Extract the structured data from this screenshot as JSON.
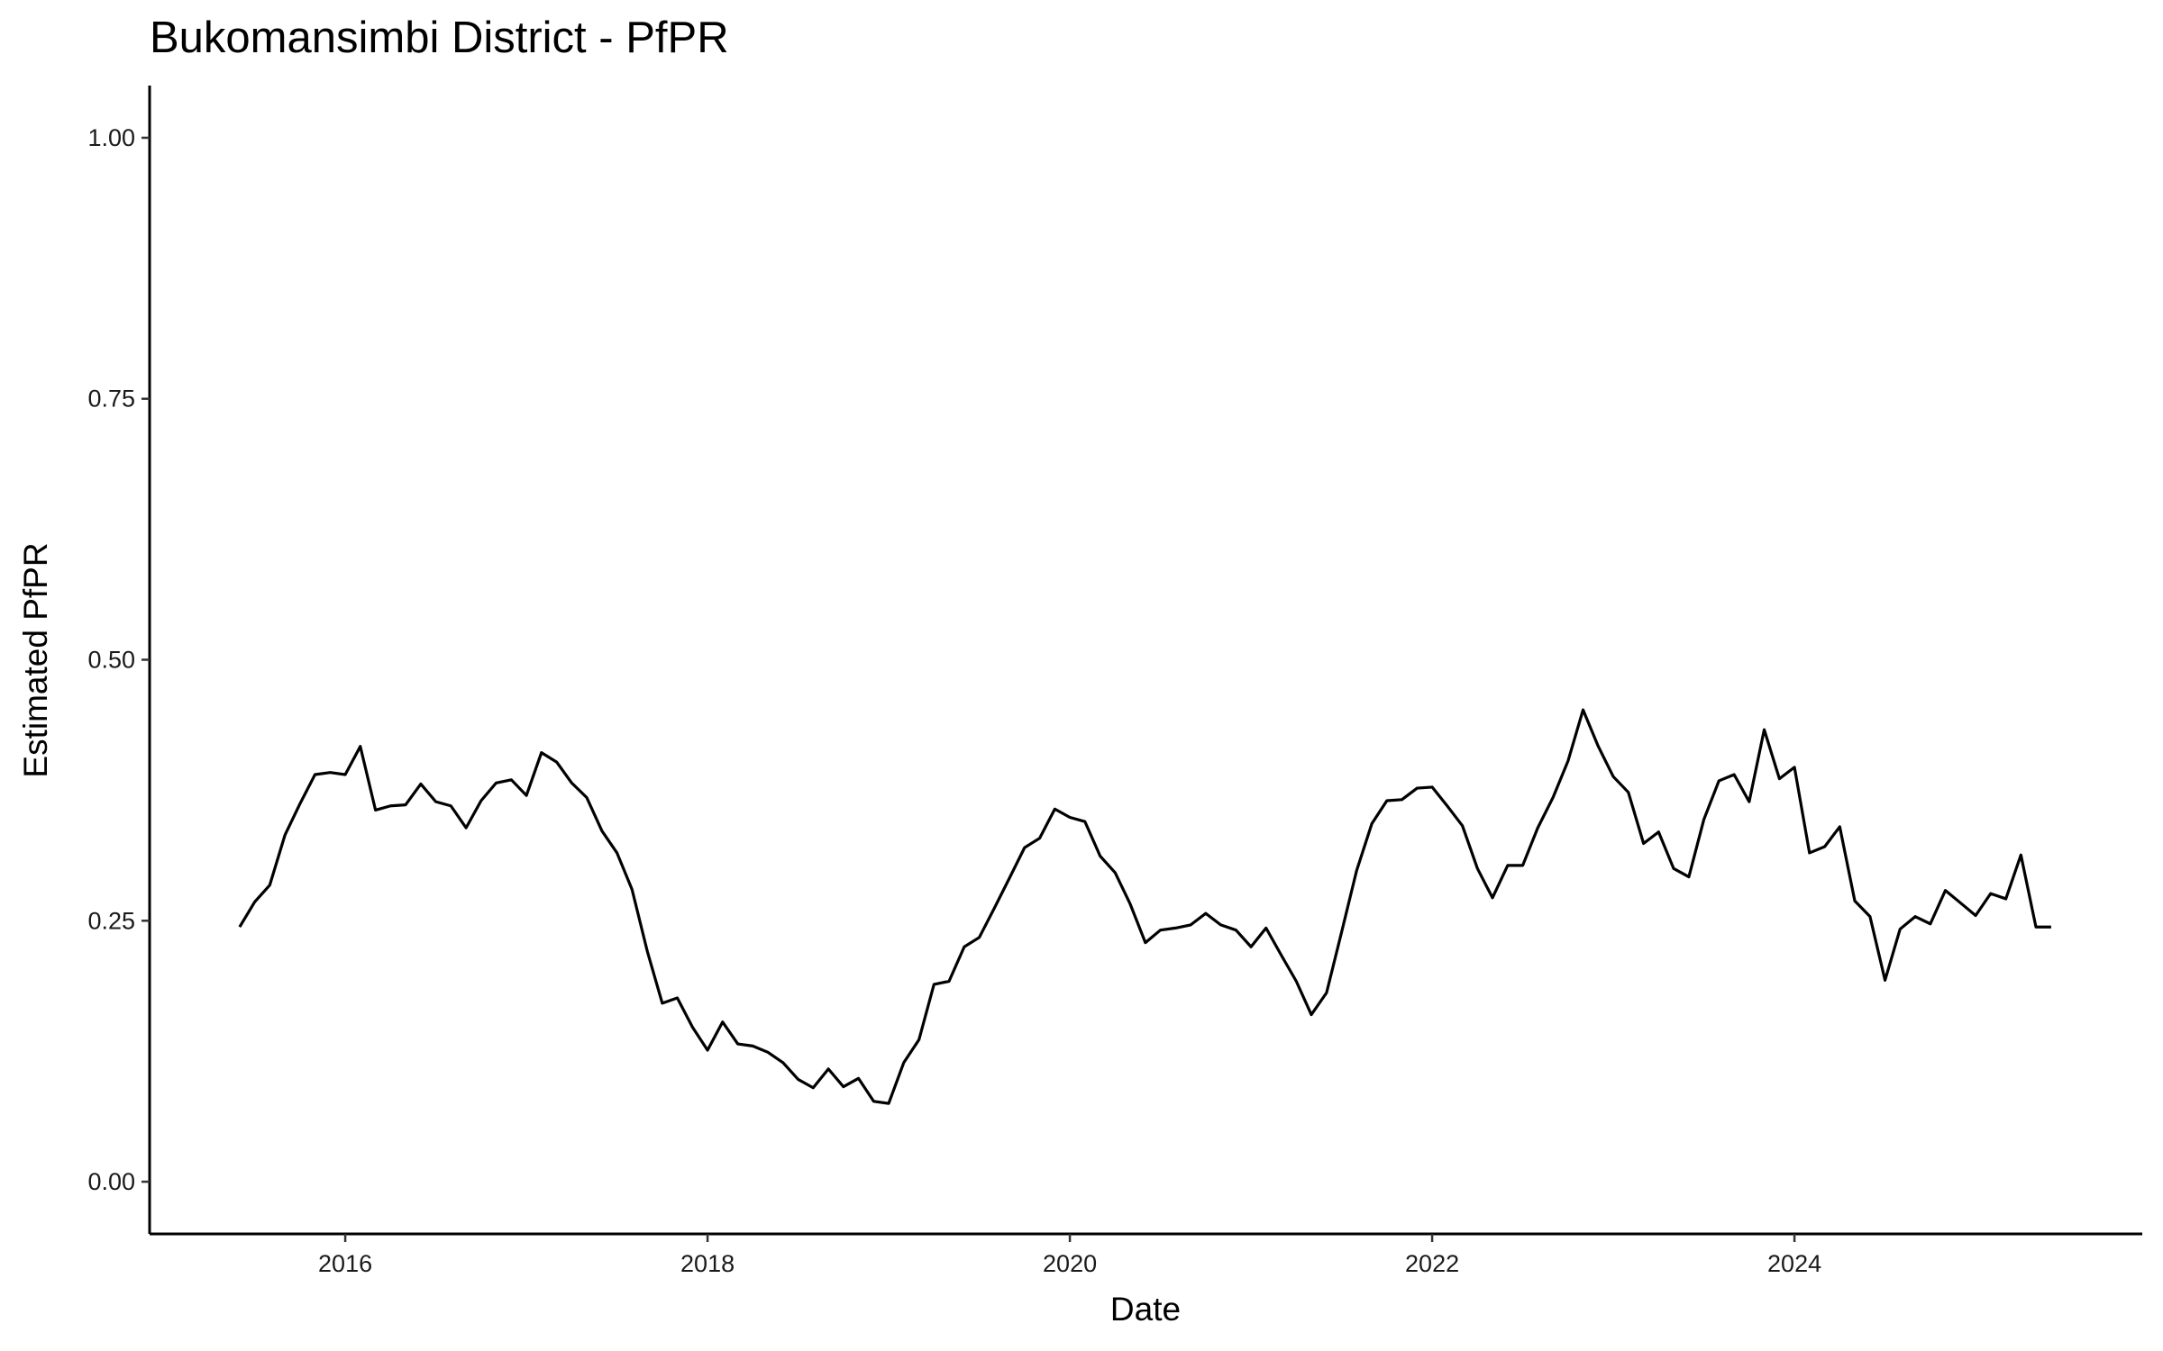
{
  "chart_data": {
    "type": "line",
    "title": "Bukomansimbi District - PfPR",
    "xlabel": "Date",
    "ylabel": "Estimated PfPR",
    "color": "#000000",
    "grid": false,
    "xlim": [
      2014.92,
      2025.92
    ],
    "xticks": [
      2016,
      2018,
      2020,
      2022,
      2024
    ],
    "ylim": [
      -0.05,
      1.05
    ],
    "yticks": [
      {
        "value": 0,
        "label": "0.00"
      },
      {
        "value": 0.25,
        "label": "0.25"
      },
      {
        "value": 0.5,
        "label": "0.50"
      },
      {
        "value": 0.75,
        "label": "0.75"
      },
      {
        "value": 1,
        "label": "1.00"
      }
    ],
    "x": [
      2015.417,
      2015.5,
      2015.583,
      2015.667,
      2015.75,
      2015.833,
      2015.917,
      2016.0,
      2016.083,
      2016.167,
      2016.25,
      2016.333,
      2016.417,
      2016.5,
      2016.583,
      2016.667,
      2016.75,
      2016.833,
      2016.917,
      2017.0,
      2017.083,
      2017.167,
      2017.25,
      2017.333,
      2017.417,
      2017.5,
      2017.583,
      2017.667,
      2017.75,
      2017.833,
      2017.917,
      2018.0,
      2018.083,
      2018.167,
      2018.25,
      2018.333,
      2018.417,
      2018.5,
      2018.583,
      2018.667,
      2018.75,
      2018.833,
      2018.917,
      2019.0,
      2019.083,
      2019.167,
      2019.25,
      2019.333,
      2019.417,
      2019.5,
      2019.583,
      2019.667,
      2019.75,
      2019.833,
      2019.917,
      2020.0,
      2020.083,
      2020.167,
      2020.25,
      2020.333,
      2020.417,
      2020.5,
      2020.583,
      2020.667,
      2020.75,
      2020.833,
      2020.917,
      2021.0,
      2021.083,
      2021.167,
      2021.25,
      2021.333,
      2021.417,
      2021.5,
      2021.583,
      2021.667,
      2021.75,
      2021.833,
      2021.917,
      2022.0,
      2022.083,
      2022.167,
      2022.25,
      2022.333,
      2022.417,
      2022.5,
      2022.583,
      2022.667,
      2022.75,
      2022.833,
      2022.917,
      2023.0,
      2023.083,
      2023.167,
      2023.25,
      2023.333,
      2023.417,
      2023.5,
      2023.583,
      2023.667,
      2023.75,
      2023.833,
      2023.917,
      2024.0,
      2024.083,
      2024.167,
      2024.25,
      2024.333,
      2024.417,
      2024.5,
      2024.583,
      2024.667,
      2024.75,
      2024.833,
      2024.917,
      2025.0,
      2025.083,
      2025.167,
      2025.25,
      2025.333,
      2025.417
    ],
    "values": [
      0.244,
      0.268,
      0.284,
      0.332,
      0.362,
      0.39,
      0.392,
      0.39,
      0.417,
      0.356,
      0.36,
      0.361,
      0.381,
      0.364,
      0.36,
      0.339,
      0.365,
      0.382,
      0.385,
      0.37,
      0.411,
      0.402,
      0.382,
      0.368,
      0.336,
      0.315,
      0.28,
      0.221,
      0.171,
      0.176,
      0.148,
      0.126,
      0.153,
      0.132,
      0.13,
      0.124,
      0.114,
      0.098,
      0.09,
      0.108,
      0.091,
      0.099,
      0.077,
      0.075,
      0.114,
      0.136,
      0.189,
      0.192,
      0.225,
      0.234,
      0.262,
      0.291,
      0.32,
      0.329,
      0.357,
      0.349,
      0.345,
      0.312,
      0.296,
      0.266,
      0.229,
      0.241,
      0.243,
      0.246,
      0.257,
      0.246,
      0.241,
      0.225,
      0.243,
      0.217,
      0.192,
      0.16,
      0.181,
      0.239,
      0.298,
      0.343,
      0.365,
      0.366,
      0.377,
      0.378,
      0.36,
      0.341,
      0.3,
      0.272,
      0.303,
      0.303,
      0.339,
      0.368,
      0.403,
      0.452,
      0.417,
      0.388,
      0.373,
      0.324,
      0.335,
      0.3,
      0.292,
      0.347,
      0.384,
      0.39,
      0.364,
      0.433,
      0.386,
      0.397,
      0.315,
      0.321,
      0.34,
      0.269,
      0.254,
      0.193,
      0.242,
      0.254,
      0.247,
      0.279,
      0.267,
      0.255,
      0.276,
      0.271,
      0.313,
      0.244,
      0.244
    ]
  }
}
